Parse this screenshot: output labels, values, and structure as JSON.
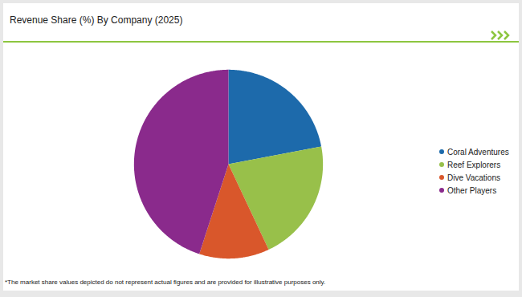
{
  "chart_data": {
    "type": "pie",
    "title": "Revenue Share (%) By Company (2025)",
    "categories": [
      "Coral Adventures",
      "Reef Explorers",
      "Dive Vacations",
      "Other Players"
    ],
    "values": [
      22,
      21,
      12,
      45
    ],
    "colors": [
      "#1d6aab",
      "#98c04a",
      "#d9572b",
      "#8a2a8c"
    ],
    "legend": "right",
    "footnote": "*The market share values depicted do not represent actual figures and are provided for illustrative purposes only."
  }
}
